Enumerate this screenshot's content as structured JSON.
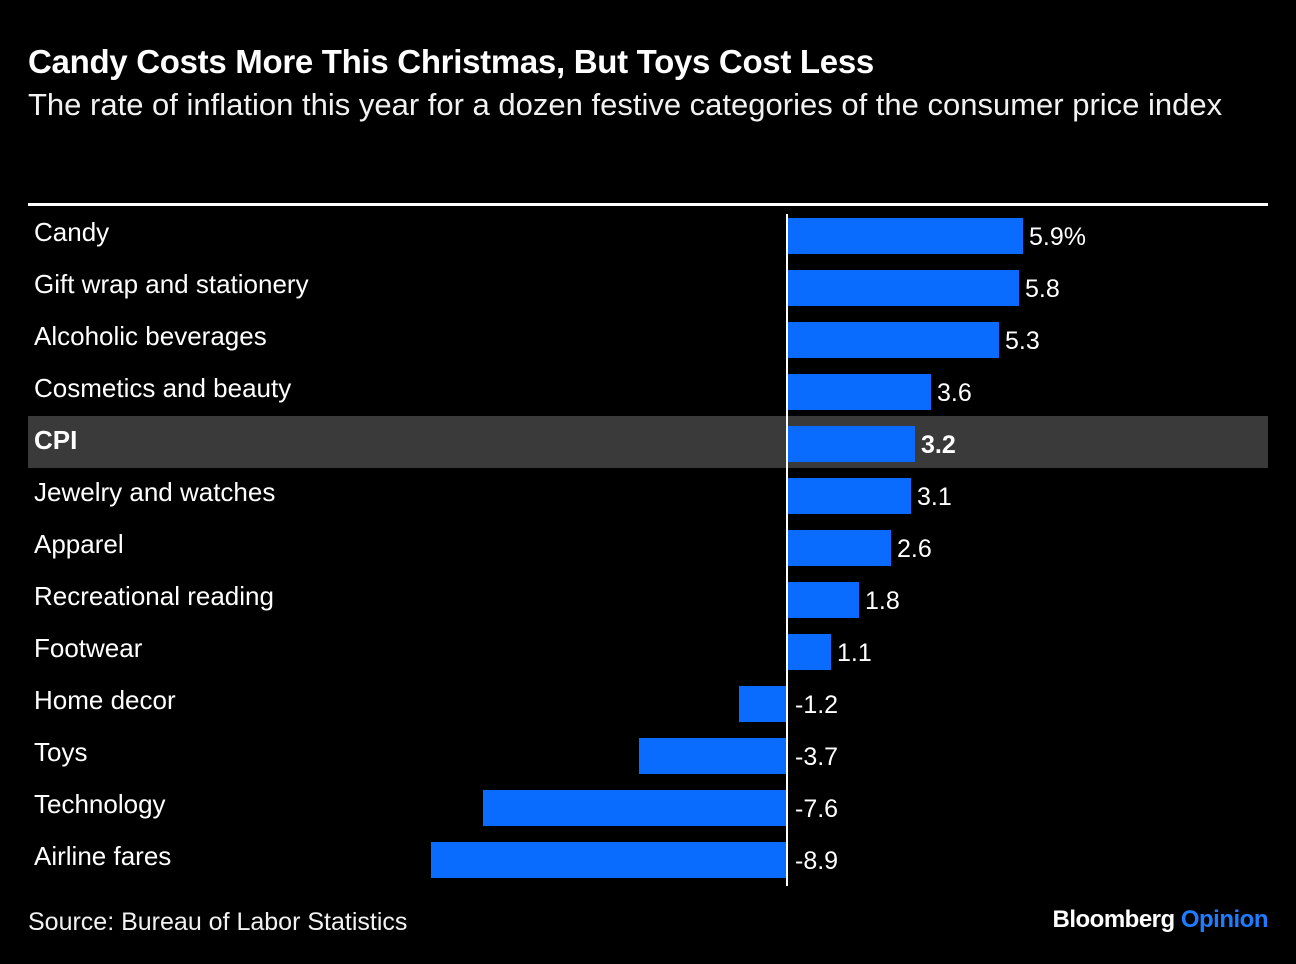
{
  "header": {
    "title": "Candy Costs More This Christmas, But Toys Cost Less",
    "subtitle": "The rate of inflation this year for a dozen festive categories of the consumer price index"
  },
  "footer": {
    "source": "Source: Bureau of Labor Statistics",
    "brand_primary": "Bloomberg",
    "brand_secondary": "Opinion"
  },
  "colors": {
    "bar": "#0a6cff",
    "highlight_row": "#3a3a3a",
    "brand_accent": "#1f7bff",
    "axis": "#ffffff",
    "text": "#ffffff"
  },
  "chart_data": {
    "type": "bar",
    "orientation": "horizontal",
    "title": "Candy Costs More This Christmas, But Toys Cost Less",
    "subtitle": "The rate of inflation this year for a dozen festive categories of the consumer price index",
    "categories": [
      "Candy",
      "Gift wrap and stationery",
      "Alcoholic beverages",
      "Cosmetics and beauty",
      "CPI",
      "Jewelry and watches",
      "Apparel",
      "Recreational reading",
      "Footwear",
      "Home decor",
      "Toys",
      "Technology",
      "Airline fares"
    ],
    "values": [
      5.9,
      5.8,
      5.3,
      3.6,
      3.2,
      3.1,
      2.6,
      1.8,
      1.1,
      -1.2,
      -3.7,
      -7.6,
      -8.9
    ],
    "value_labels": [
      "5.9%",
      "5.8",
      "5.3",
      "3.6",
      "3.2",
      "3.1",
      "2.6",
      "1.8",
      "1.1",
      "-1.2",
      "-3.7",
      "-7.6",
      "-8.9"
    ],
    "highlight_category": "CPI",
    "xlim": [
      -8.9,
      5.9
    ],
    "grid": false,
    "legend": "none"
  }
}
